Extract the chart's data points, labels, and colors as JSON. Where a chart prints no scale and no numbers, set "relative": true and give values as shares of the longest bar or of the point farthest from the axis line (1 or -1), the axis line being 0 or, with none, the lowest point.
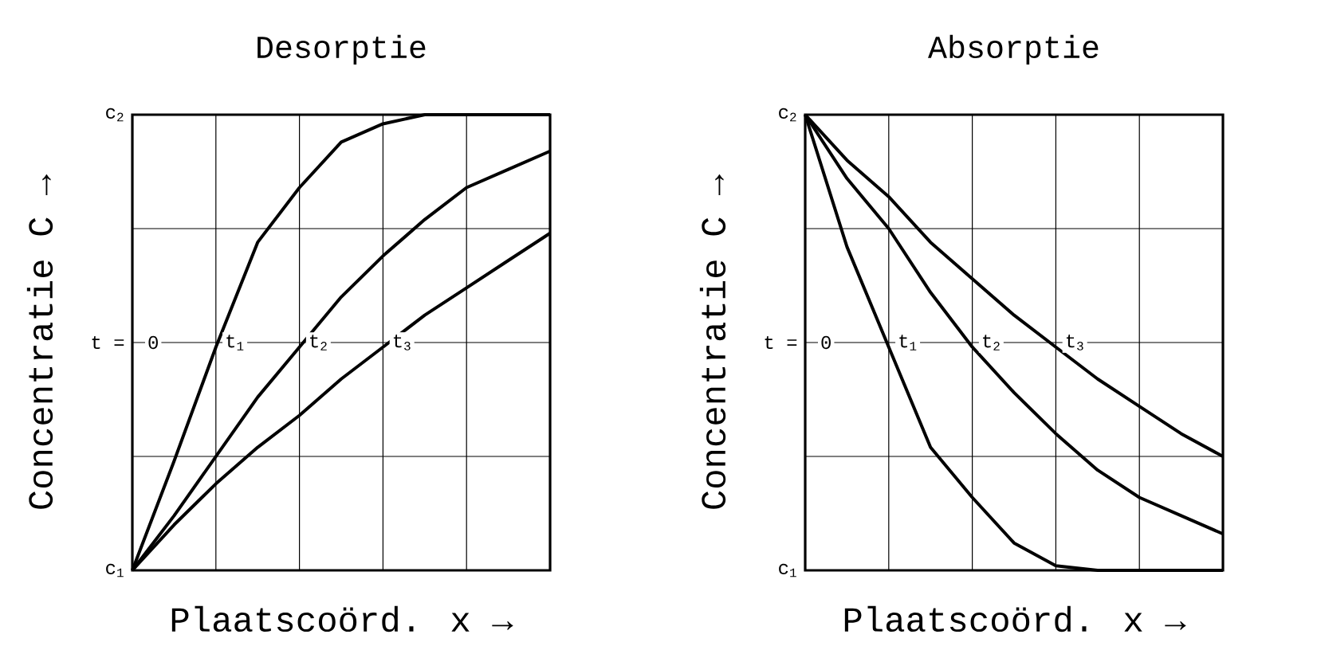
{
  "chart_data": [
    {
      "type": "line",
      "title": "Desorptie",
      "xlabel": "Plaatscoörd. x →",
      "ylabel": "Concentratie C →",
      "relative": true,
      "categories": [
        null,
        null,
        null,
        null,
        null,
        null,
        null,
        null,
        null,
        null,
        null
      ],
      "series": [
        {
          "color": "#000000",
          "values": [
            0,
            0.24,
            0.49,
            0.72,
            0.84,
            0.94,
            0.98,
            1,
            1,
            1,
            1
          ]
        },
        {
          "color": "#000000",
          "values": [
            0,
            0.12,
            0.25,
            0.38,
            0.49,
            0.6,
            0.69,
            0.77,
            0.84,
            0.88,
            0.92
          ]
        },
        {
          "color": "#000000",
          "values": [
            0,
            0.1,
            0.19,
            0.27,
            0.34,
            0.42,
            0.49,
            0.56,
            0.62,
            0.68,
            0.74
          ]
        }
      ],
      "grid": true,
      "marker": "none",
      "line_style": "solid",
      "annotations": [
        "c$_{2}$",
        "c$_{1}$",
        "t =",
        "0",
        "t$_{1}$",
        "t$_{2}$",
        "t$_{3}$"
      ]
    },
    {
      "type": "line",
      "title": "Absorptie",
      "xlabel": "Plaatscoörd. x →",
      "ylabel": "Concentratie C →",
      "relative": true,
      "categories": [
        null,
        null,
        null,
        null,
        null,
        null,
        null,
        null,
        null,
        null,
        null
      ],
      "series": [
        {
          "color": "#000000",
          "values": [
            1,
            0.71,
            0.49,
            0.27,
            0.16,
            0.06,
            0.01,
            0,
            0,
            0,
            0
          ]
        },
        {
          "color": "#000000",
          "values": [
            1,
            0.86,
            0.75,
            0.61,
            0.49,
            0.39,
            0.3,
            0.22,
            0.16,
            0.12,
            0.08
          ]
        },
        {
          "color": "#000000",
          "values": [
            1,
            0.9,
            0.82,
            0.72,
            0.64,
            0.56,
            0.49,
            0.42,
            0.36,
            0.3,
            0.25
          ]
        }
      ],
      "grid": true,
      "marker": "none",
      "line_style": "solid",
      "annotations": [
        "c$_{2}$",
        "c$_{1}$",
        "t =",
        "0",
        "t$_{1}$",
        "t$_{2}$",
        "t$_{3}$"
      ]
    }
  ]
}
